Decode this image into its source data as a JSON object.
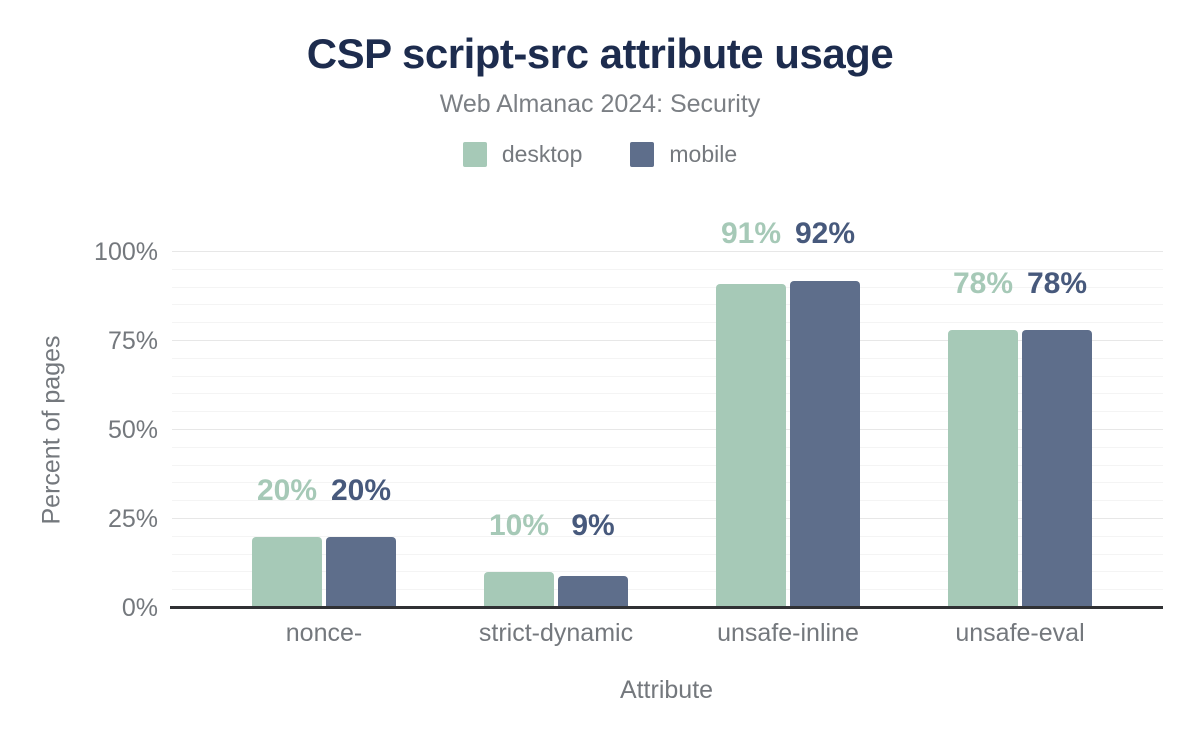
{
  "chart_data": {
    "type": "bar",
    "title": "CSP script-src attribute usage",
    "subtitle": "Web Almanac 2024: Security",
    "xlabel": "Attribute",
    "ylabel": "Percent of pages",
    "categories": [
      "nonce-",
      "strict-dynamic",
      "unsafe-inline",
      "unsafe-eval"
    ],
    "series": [
      {
        "name": "desktop",
        "color": "#a6c9b7",
        "label_color": "#a6c9b7",
        "values": [
          20,
          10,
          91,
          78
        ],
        "labels": [
          "20%",
          "10%",
          "91%",
          "78%"
        ]
      },
      {
        "name": "mobile",
        "color": "#5e6e8b",
        "label_color": "#47597c",
        "values": [
          20,
          9,
          92,
          78
        ],
        "labels": [
          "20%",
          "9%",
          "92%",
          "78%"
        ]
      }
    ],
    "ylim": [
      0,
      100
    ],
    "y_ticks": [
      {
        "value": 0,
        "label": "0%"
      },
      {
        "value": 25,
        "label": "25%"
      },
      {
        "value": 50,
        "label": "50%"
      },
      {
        "value": 75,
        "label": "75%"
      },
      {
        "value": 100,
        "label": "100%"
      }
    ],
    "grid": {
      "minor_step": 5,
      "major_step": 25,
      "legend_position": "top"
    }
  }
}
